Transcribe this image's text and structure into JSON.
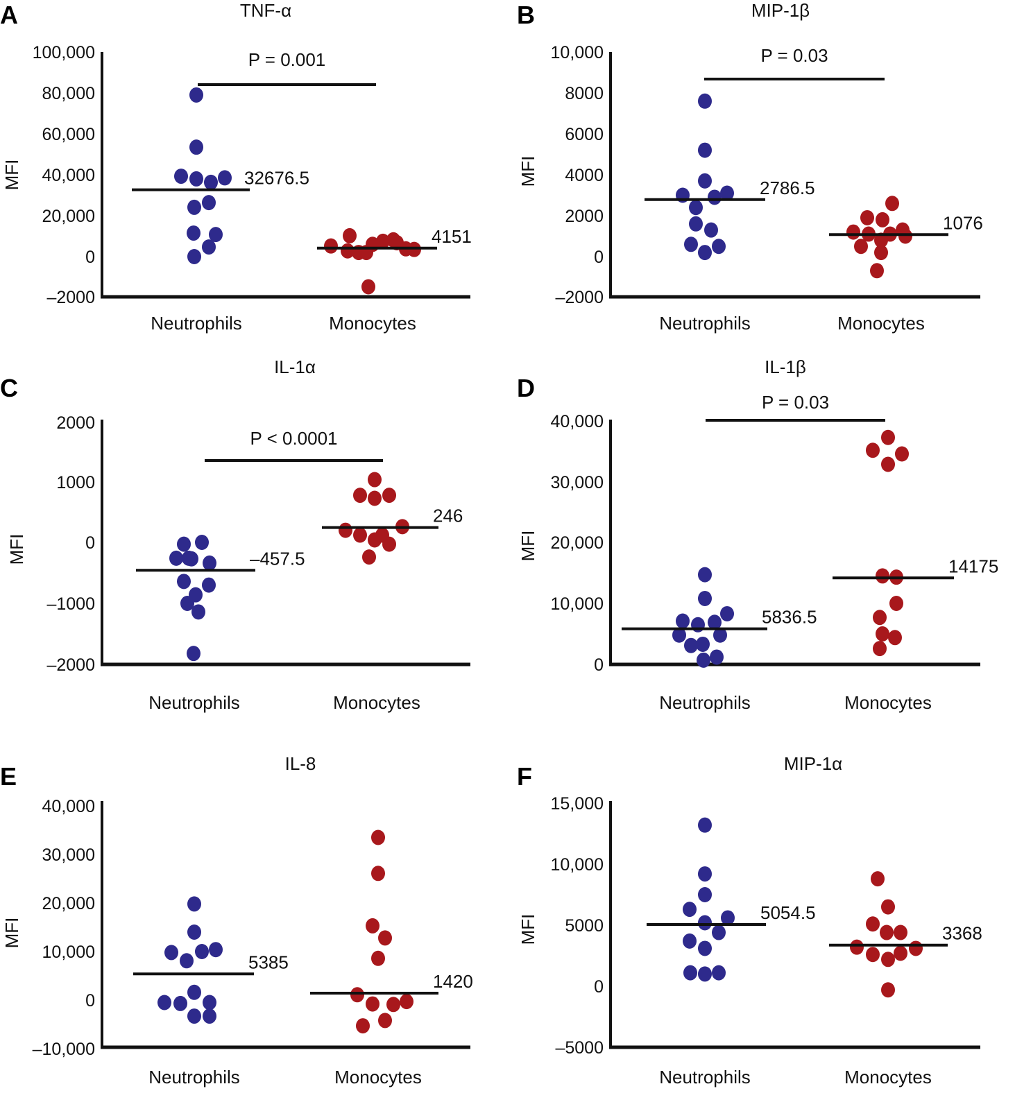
{
  "chart_data": [
    {
      "panel": "A",
      "type": "scatter",
      "title": "TNF-α",
      "ylabel": "MFI",
      "categories": [
        "Neutrophils",
        "Monocytes"
      ],
      "yticks": [
        "100,000",
        "80,000",
        "60,000",
        "40,000",
        "20,000",
        "0",
        "–2000"
      ],
      "ytick_values": [
        100000,
        80000,
        60000,
        40000,
        20000,
        0,
        -2000
      ],
      "ylim": [
        -2000,
        100000
      ],
      "pvalue": "P = 0.001",
      "series": [
        {
          "name": "Neutrophils",
          "color": "#2e2a8c",
          "median": 32676.5,
          "median_label": "32676.5",
          "values": [
            79000,
            53500,
            39300,
            38000,
            36300,
            38500,
            24100,
            26400,
            11500,
            10800,
            4700,
            0
          ]
        },
        {
          "name": "Monocytes",
          "color": "#a8181c",
          "median": 4151,
          "median_label": "4151",
          "values": [
            5200,
            10200,
            2800,
            2000,
            7500,
            6000,
            -1500,
            6800,
            2000,
            8200,
            3800,
            3500
          ]
        }
      ]
    },
    {
      "panel": "B",
      "type": "scatter",
      "title": "MIP-1β",
      "ylabel": "MFI",
      "categories": [
        "Neutrophils",
        "Monocytes"
      ],
      "yticks": [
        "10,000",
        "8000",
        "6000",
        "4000",
        "2000",
        "0",
        "–2000"
      ],
      "ytick_values": [
        10000,
        8000,
        6000,
        4000,
        2000,
        0,
        -2000
      ],
      "ylim": [
        -2000,
        10000
      ],
      "pvalue": "P = 0.03",
      "series": [
        {
          "name": "Neutrophils",
          "color": "#2e2a8c",
          "median": 2786.5,
          "median_label": "2786.5",
          "values": [
            7600,
            5200,
            3700,
            3000,
            2900,
            3100,
            2400,
            1600,
            1300,
            600,
            200,
            500
          ]
        },
        {
          "name": "Monocytes",
          "color": "#a8181c",
          "median": 1076,
          "median_label": "1076",
          "values": [
            2600,
            1900,
            1800,
            1200,
            1100,
            1100,
            1300,
            500,
            800,
            200,
            -700,
            1000
          ]
        }
      ]
    },
    {
      "panel": "C",
      "type": "scatter",
      "title": "IL-1α",
      "ylabel": "MFI",
      "categories": [
        "Neutrophils",
        "Monocytes"
      ],
      "yticks": [
        "2000",
        "1000",
        "0",
        "–1000",
        "–2000"
      ],
      "ytick_values": [
        2000,
        1000,
        0,
        -1000,
        -2000
      ],
      "ylim": [
        -2000,
        2000
      ],
      "pvalue": "P < 0.0001",
      "series": [
        {
          "name": "Neutrophils",
          "color": "#2e2a8c",
          "median": -457.5,
          "median_label": "–457.5",
          "values": [
            -30,
            0,
            -260,
            -270,
            -340,
            -260,
            -640,
            -700,
            -860,
            -1000,
            -1140,
            -1820
          ]
        },
        {
          "name": "Monocytes",
          "color": "#a8181c",
          "median": 246,
          "median_label": "246",
          "values": [
            1040,
            780,
            730,
            780,
            200,
            120,
            40,
            120,
            260,
            -30,
            -240
          ]
        }
      ]
    },
    {
      "panel": "D",
      "type": "scatter",
      "title": "IL-1β",
      "ylabel": "MFI",
      "categories": [
        "Neutrophils",
        "Monocytes"
      ],
      "yticks": [
        "40,000",
        "30,000",
        "20,000",
        "10,000",
        "0"
      ],
      "ytick_values": [
        40000,
        30000,
        20000,
        10000,
        0
      ],
      "ylim": [
        0,
        40000
      ],
      "pvalue": "P = 0.03",
      "series": [
        {
          "name": "Neutrophils",
          "color": "#2e2a8c",
          "median": 5836.5,
          "median_label": "5836.5",
          "values": [
            14700,
            10800,
            8300,
            7100,
            6500,
            6900,
            4800,
            4800,
            3100,
            3300,
            1200,
            700
          ]
        },
        {
          "name": "Monocytes",
          "color": "#a8181c",
          "median": 14175,
          "median_label": "14175",
          "values": [
            37300,
            35200,
            34600,
            32900,
            14500,
            14300,
            10000,
            7700,
            5000,
            4400,
            2600
          ]
        }
      ]
    },
    {
      "panel": "E",
      "type": "scatter",
      "title": "IL-8",
      "ylabel": "MFI",
      "categories": [
        "Neutrophils",
        "Monocytes"
      ],
      "yticks": [
        "40,000",
        "30,000",
        "20,000",
        "10,000",
        "0",
        "–10,000"
      ],
      "ytick_values": [
        40000,
        30000,
        20000,
        10000,
        0,
        -10000
      ],
      "ylim": [
        -10000,
        40000
      ],
      "pvalue": "",
      "series": [
        {
          "name": "Neutrophils",
          "color": "#2e2a8c",
          "median": 5385,
          "median_label": "5385",
          "values": [
            19800,
            14000,
            9800,
            10000,
            10400,
            8100,
            1600,
            -500,
            -700,
            -500,
            -3300,
            -3300
          ]
        },
        {
          "name": "Monocytes",
          "color": "#a8181c",
          "median": 1420,
          "median_label": "1420",
          "values": [
            33500,
            26100,
            15300,
            12800,
            8600,
            1100,
            -800,
            -900,
            -300,
            -4200,
            -5300
          ]
        }
      ]
    },
    {
      "panel": "F",
      "type": "scatter",
      "title": "MIP-1α",
      "ylabel": "MFI",
      "categories": [
        "Neutrophils",
        "Monocytes"
      ],
      "yticks": [
        "15,000",
        "10,000",
        "5000",
        "0",
        "–5000"
      ],
      "ytick_values": [
        15000,
        10000,
        5000,
        0,
        -5000
      ],
      "ylim": [
        -5000,
        15000
      ],
      "pvalue": "",
      "series": [
        {
          "name": "Neutrophils",
          "color": "#2e2a8c",
          "median": 5054.5,
          "median_label": "5054.5",
          "values": [
            13200,
            9200,
            7500,
            6300,
            5200,
            5600,
            4400,
            3700,
            3100,
            1100,
            1000,
            1100
          ]
        },
        {
          "name": "Monocytes",
          "color": "#a8181c",
          "median": 3368,
          "median_label": "3368",
          "values": [
            8800,
            6500,
            5100,
            4400,
            4400,
            3200,
            2600,
            2700,
            3100,
            2200,
            -300
          ]
        }
      ]
    }
  ]
}
